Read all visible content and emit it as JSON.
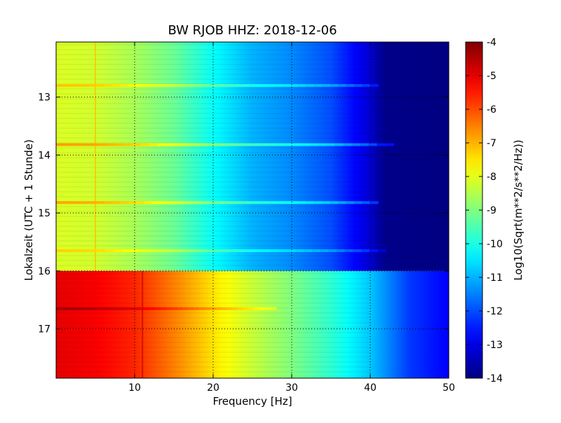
{
  "chart_data": {
    "type": "heatmap",
    "title": "BW RJOB HHZ: 2018-12-06",
    "xlabel": "Frequency [Hz]",
    "ylabel": "Lokalzeit (UTC + 1 Stunde)",
    "xlim": [
      0,
      50
    ],
    "ylim": [
      12.05,
      17.85
    ],
    "y_inverted": true,
    "x_ticks": [
      "10",
      "20",
      "30",
      "40",
      "50"
    ],
    "x_tick_values": [
      10,
      20,
      30,
      40,
      50
    ],
    "y_ticks": [
      "13",
      "14",
      "15",
      "16",
      "17"
    ],
    "y_tick_values": [
      13,
      14,
      15,
      16,
      17
    ],
    "grid": true,
    "colormap": "jet",
    "colorbar": {
      "label": "Log10(Sqrt(m**2/s**2/Hz))",
      "range": [
        -14,
        -4
      ],
      "ticks": [
        "-4",
        "-5",
        "-6",
        "-7",
        "-8",
        "-9",
        "-10",
        "-11",
        "-12",
        "-13",
        "-14"
      ]
    },
    "bands": [
      {
        "time_range": [
          12.05,
          16.0
        ],
        "profile": [
          [
            0,
            -8.1
          ],
          [
            5,
            -8.2
          ],
          [
            10,
            -8.6
          ],
          [
            15,
            -9.2
          ],
          [
            20,
            -10.2
          ],
          [
            25,
            -11.0
          ],
          [
            30,
            -11.4
          ],
          [
            35,
            -12.0
          ],
          [
            40,
            -13.2
          ],
          [
            41.5,
            -13.9
          ],
          [
            50,
            -14.0
          ]
        ],
        "line_artifact_hz": 5
      },
      {
        "time_range": [
          16.0,
          17.85
        ],
        "profile": [
          [
            0,
            -5.0
          ],
          [
            5,
            -5.2
          ],
          [
            10,
            -5.6
          ],
          [
            15,
            -6.5
          ],
          [
            20,
            -7.5
          ],
          [
            25,
            -8.3
          ],
          [
            30,
            -9.0
          ],
          [
            35,
            -9.8
          ],
          [
            40,
            -10.8
          ],
          [
            45,
            -12.2
          ],
          [
            50,
            -12.8
          ]
        ],
        "line_artifact_hz": 11
      }
    ],
    "stripes": [
      {
        "time": 12.8,
        "delta": 0.9,
        "fmax": 41
      },
      {
        "time": 13.82,
        "delta": 1.3,
        "fmax": 43
      },
      {
        "time": 14.82,
        "delta": 1.2,
        "fmax": 41
      },
      {
        "time": 15.65,
        "delta": 0.8,
        "fmax": 42
      },
      {
        "time": 16.65,
        "delta": 0.7,
        "fmax": 28
      }
    ]
  }
}
